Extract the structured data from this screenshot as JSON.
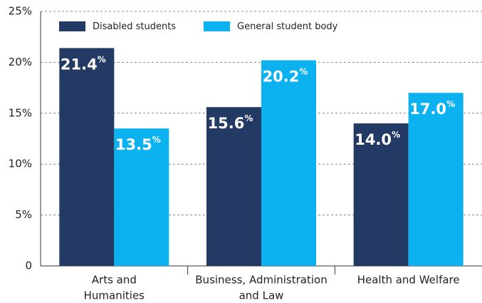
{
  "chart_data": {
    "type": "bar",
    "categories": [
      [
        "Arts and",
        "Humanities"
      ],
      [
        "Business, Administration",
        "and Law"
      ],
      [
        "Health and Welfare"
      ]
    ],
    "series": [
      {
        "name": "Disabled students",
        "color": "#233a64",
        "values": [
          21.4,
          15.6,
          14.0
        ],
        "value_labels": [
          "21.4%",
          "15.6%",
          "14.0%"
        ]
      },
      {
        "name": "General student body",
        "color": "#0cb2f0",
        "values": [
          13.5,
          20.2,
          17.0
        ],
        "value_labels": [
          "13.5%",
          "20.2%",
          "17.0%"
        ]
      }
    ],
    "ylim": [
      0,
      25
    ],
    "yticks": [
      0,
      {
        "value": 5,
        "label": "5%"
      },
      {
        "value": 10,
        "label": "10%"
      },
      {
        "value": 15,
        "label": "15%"
      },
      {
        "value": 20,
        "label": "20%"
      },
      {
        "value": 25,
        "label": "25%"
      }
    ],
    "grid": true,
    "legend": "top-left"
  }
}
